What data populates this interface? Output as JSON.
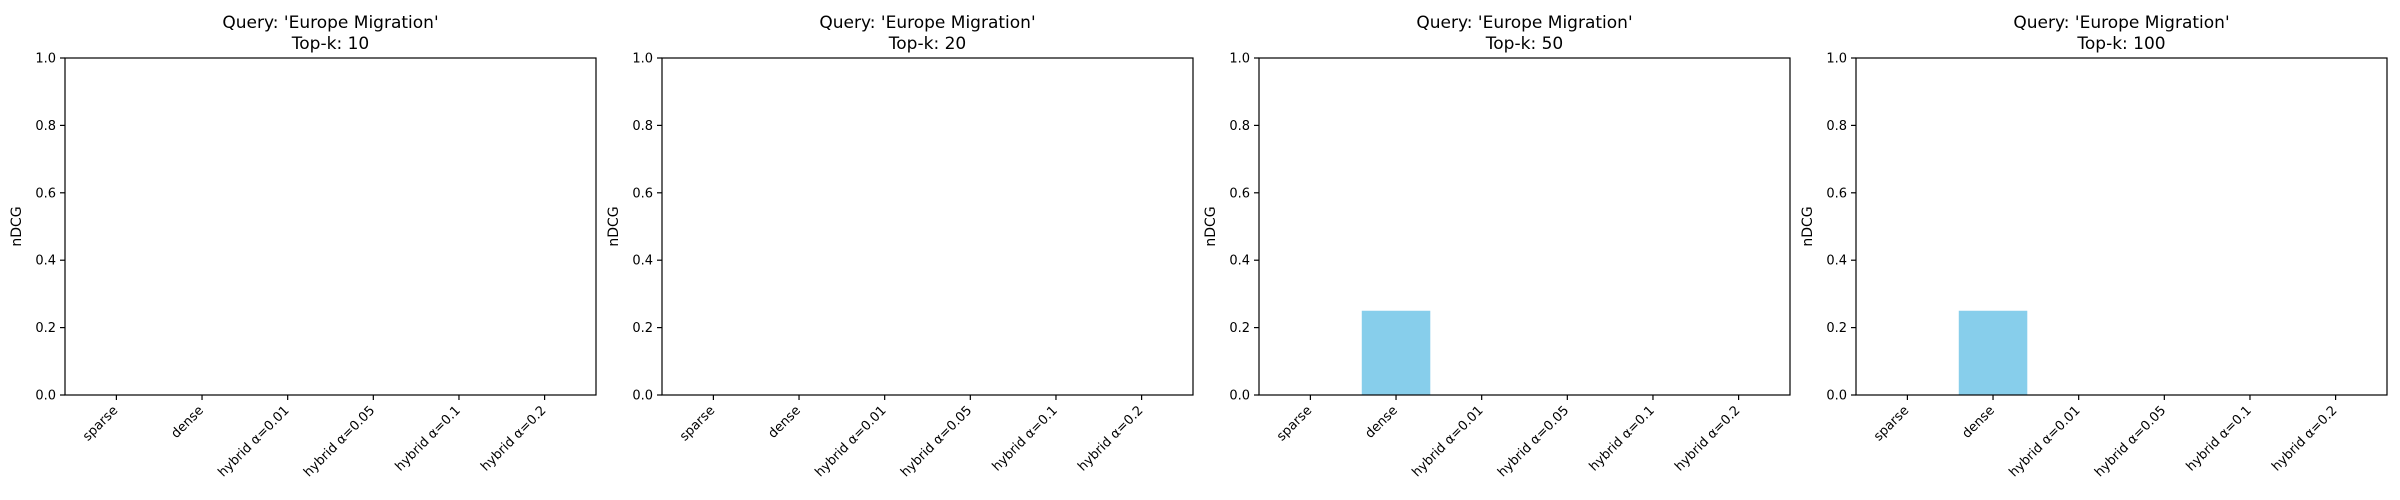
{
  "figure": {
    "background": "#ffffff"
  },
  "chart_data": [
    {
      "type": "bar",
      "title_line1": "Query: 'Europe Migration'",
      "title_line2": "Top-k: 10",
      "categories": [
        "sparse",
        "dense",
        "hybrid α=0.01",
        "hybrid α=0.05",
        "hybrid α=0.1",
        "hybrid α=0.2"
      ],
      "values": [
        0,
        0,
        0,
        0,
        0,
        0
      ],
      "xlabel": "",
      "ylabel": "nDCG",
      "ylim": [
        0,
        1.0
      ],
      "yticks": [
        "0.0",
        "0.2",
        "0.4",
        "0.6",
        "0.8",
        "1.0"
      ],
      "grid": false,
      "bar_color": "#87ceeb"
    },
    {
      "type": "bar",
      "title_line1": "Query: 'Europe Migration'",
      "title_line2": "Top-k: 20",
      "categories": [
        "sparse",
        "dense",
        "hybrid α=0.01",
        "hybrid α=0.05",
        "hybrid α=0.1",
        "hybrid α=0.2"
      ],
      "values": [
        0,
        0,
        0,
        0,
        0,
        0
      ],
      "xlabel": "",
      "ylabel": "nDCG",
      "ylim": [
        0,
        1.0
      ],
      "yticks": [
        "0.0",
        "0.2",
        "0.4",
        "0.6",
        "0.8",
        "1.0"
      ],
      "grid": false,
      "bar_color": "#87ceeb"
    },
    {
      "type": "bar",
      "title_line1": "Query: 'Europe Migration'",
      "title_line2": "Top-k: 50",
      "categories": [
        "sparse",
        "dense",
        "hybrid α=0.01",
        "hybrid α=0.05",
        "hybrid α=0.1",
        "hybrid α=0.2"
      ],
      "values": [
        0,
        0.25,
        0,
        0,
        0,
        0
      ],
      "xlabel": "",
      "ylabel": "nDCG",
      "ylim": [
        0,
        1.0
      ],
      "yticks": [
        "0.0",
        "0.2",
        "0.4",
        "0.6",
        "0.8",
        "1.0"
      ],
      "grid": false,
      "bar_color": "#87ceeb"
    },
    {
      "type": "bar",
      "title_line1": "Query: 'Europe Migration'",
      "title_line2": "Top-k: 100",
      "categories": [
        "sparse",
        "dense",
        "hybrid α=0.01",
        "hybrid α=0.05",
        "hybrid α=0.1",
        "hybrid α=0.2"
      ],
      "values": [
        0,
        0.25,
        0,
        0,
        0,
        0
      ],
      "xlabel": "",
      "ylabel": "nDCG",
      "ylim": [
        0,
        1.0
      ],
      "yticks": [
        "0.0",
        "0.2",
        "0.4",
        "0.6",
        "0.8",
        "1.0"
      ],
      "grid": false,
      "bar_color": "#87ceeb"
    }
  ]
}
